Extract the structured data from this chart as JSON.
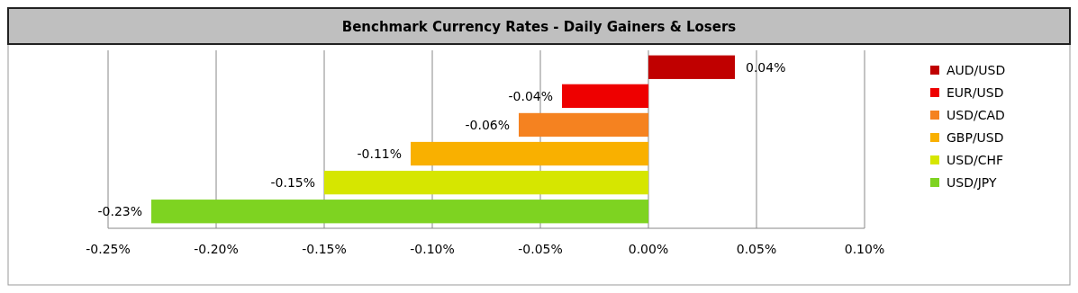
{
  "chart_data": {
    "type": "bar",
    "orientation": "horizontal",
    "title": "Benchmark Currency Rates - Daily Gainers & Losers",
    "categories": [
      null,
      null,
      null,
      null,
      null,
      null
    ],
    "series": [
      {
        "name": "AUD/USD",
        "color": "#c00000",
        "values": [
          0.04,
          null,
          null,
          null,
          null,
          null
        ],
        "value_labels": [
          "0.04%",
          null,
          null,
          null,
          null,
          null
        ]
      },
      {
        "name": "EUR/USD",
        "color": "#ee0000",
        "values": [
          null,
          -0.04,
          null,
          null,
          null,
          null
        ],
        "value_labels": [
          null,
          "-0.04%",
          null,
          null,
          null,
          null
        ]
      },
      {
        "name": "USD/CAD",
        "color": "#f58220",
        "values": [
          null,
          null,
          -0.06,
          null,
          null,
          null
        ],
        "value_labels": [
          null,
          null,
          "-0.06%",
          null,
          null,
          null
        ]
      },
      {
        "name": "GBP/USD",
        "color": "#f9b000",
        "values": [
          null,
          null,
          null,
          -0.11,
          null,
          null
        ],
        "value_labels": [
          null,
          null,
          null,
          "-0.11%",
          null,
          null
        ]
      },
      {
        "name": "USD/CHF",
        "color": "#d6e600",
        "values": [
          null,
          null,
          null,
          null,
          -0.15,
          null
        ],
        "value_labels": [
          null,
          null,
          null,
          null,
          "-0.15%",
          null
        ]
      },
      {
        "name": "USD/JPY",
        "color": "#7ed321",
        "values": [
          null,
          null,
          null,
          null,
          null,
          -0.23
        ],
        "value_labels": [
          null,
          null,
          null,
          null,
          null,
          "-0.23%"
        ]
      }
    ],
    "xlim": [
      -0.25,
      0.1
    ],
    "xticks": [
      {
        "value": -0.25,
        "label": "-0.25%"
      },
      {
        "value": -0.2,
        "label": "-0.20%"
      },
      {
        "value": -0.15,
        "label": "-0.15%"
      },
      {
        "value": -0.1,
        "label": "-0.10%"
      },
      {
        "value": -0.05,
        "label": "-0.05%"
      },
      {
        "value": 0,
        "label": "0.00%"
      },
      {
        "value": 0.05,
        "label": "0.05%"
      },
      {
        "value": 0.1,
        "label": "0.10%"
      }
    ],
    "tick_labels": "x",
    "grid": "x",
    "legend": "right"
  }
}
